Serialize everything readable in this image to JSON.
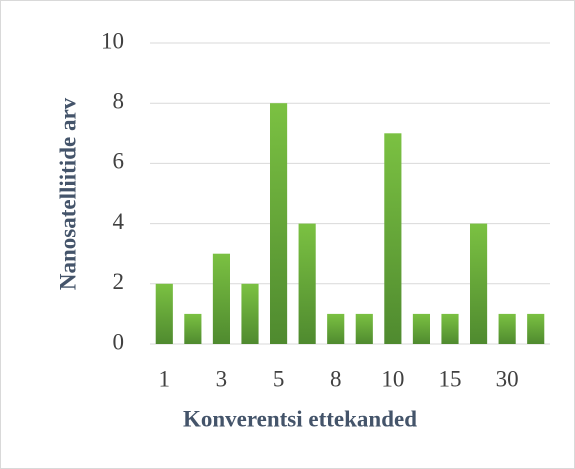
{
  "chart_data": {
    "type": "bar",
    "categories": [
      "1",
      null,
      "3",
      null,
      "5",
      null,
      "8",
      null,
      "10",
      null,
      "15",
      null,
      "30",
      null
    ],
    "values": [
      2,
      1,
      3,
      2,
      8,
      4,
      1,
      1,
      7,
      1,
      1,
      4,
      1,
      1
    ],
    "color": "#6aad3a",
    "ylim": [
      0,
      10
    ],
    "yticks": [
      0,
      2,
      4,
      6,
      8,
      10
    ],
    "grid": true,
    "x_label": "Konverentsi ettekanded",
    "y_label": "Nanosatelliitide arv"
  }
}
